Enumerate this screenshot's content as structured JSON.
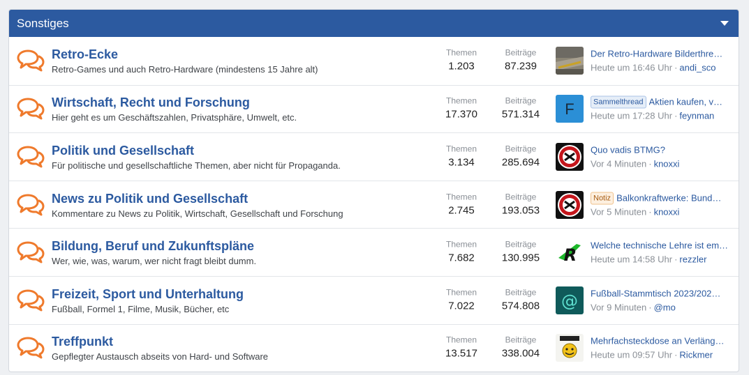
{
  "section": {
    "title": "Sonstiges",
    "accent": "#2c5aa0",
    "icon_color": "#ef7a2c"
  },
  "stats_labels": {
    "themes": "Themen",
    "posts": "Beiträge"
  },
  "forums": [
    {
      "title": "Retro-Ecke",
      "description": "Retro-Games und auch Retro-Hardware (mindestens 15 Jahre alt)",
      "themes": "1.203",
      "posts": "87.239",
      "last_prefix": "",
      "last_title": "Der Retro-Hardware Bilderthre…",
      "last_time": "Heute um 16:46 Uhr",
      "last_user": "andi_sco",
      "avatar": "photo"
    },
    {
      "title": "Wirtschaft, Recht und Forschung",
      "description": "Hier geht es um Geschäftszahlen, Privatsphäre, Umwelt, etc.",
      "themes": "17.370",
      "posts": "571.314",
      "last_prefix": "Sammelthread",
      "last_title": "Aktien kaufen, v…",
      "last_time": "Heute um 17:28 Uhr",
      "last_user": "feynman",
      "avatar": "F"
    },
    {
      "title": "Politik und Gesellschaft",
      "description": "Für politische und gesellschaftliche Themen, aber nicht für Propaganda.",
      "themes": "3.134",
      "posts": "285.694",
      "last_prefix": "",
      "last_title": "Quo vadis BTMG?",
      "last_time": "Vor 4 Minuten",
      "last_user": "knoxxi",
      "avatar": "emblem"
    },
    {
      "title": "News zu Politik und Gesellschaft",
      "description": "Kommentare zu News zu Politik, Wirtschaft, Gesellschaft und Forschung",
      "themes": "2.745",
      "posts": "193.053",
      "last_prefix": "Notiz",
      "last_title": "Balkonkraftwerke: Bund…",
      "last_time": "Vor 5 Minuten",
      "last_user": "knoxxi",
      "avatar": "emblem"
    },
    {
      "title": "Bildung, Beruf und Zukunftspläne",
      "description": "Wer, wie, was, warum, wer nicht fragt bleibt dumm.",
      "themes": "7.682",
      "posts": "130.995",
      "last_prefix": "",
      "last_title": "Welche technische Lehre ist em…",
      "last_time": "Heute um 14:58 Uhr",
      "last_user": "rezzler",
      "avatar": "R"
    },
    {
      "title": "Freizeit, Sport und Unterhaltung",
      "description": "Fußball, Formel 1, Filme, Musik, Bücher, etc",
      "themes": "7.022",
      "posts": "574.808",
      "last_prefix": "",
      "last_title": "Fußball-Stammtisch 2023/202…",
      "last_time": "Vor 9 Minuten",
      "last_user": "@mo",
      "avatar": "@"
    },
    {
      "title": "Treffpunkt",
      "description": "Gepflegter Austausch abseits von Hard- und Software",
      "themes": "13.517",
      "posts": "338.004",
      "last_prefix": "",
      "last_title": "Mehrfachsteckdose an Verläng…",
      "last_time": "Heute um 09:57 Uhr",
      "last_user": "Rickmer",
      "avatar": "smiley"
    }
  ]
}
